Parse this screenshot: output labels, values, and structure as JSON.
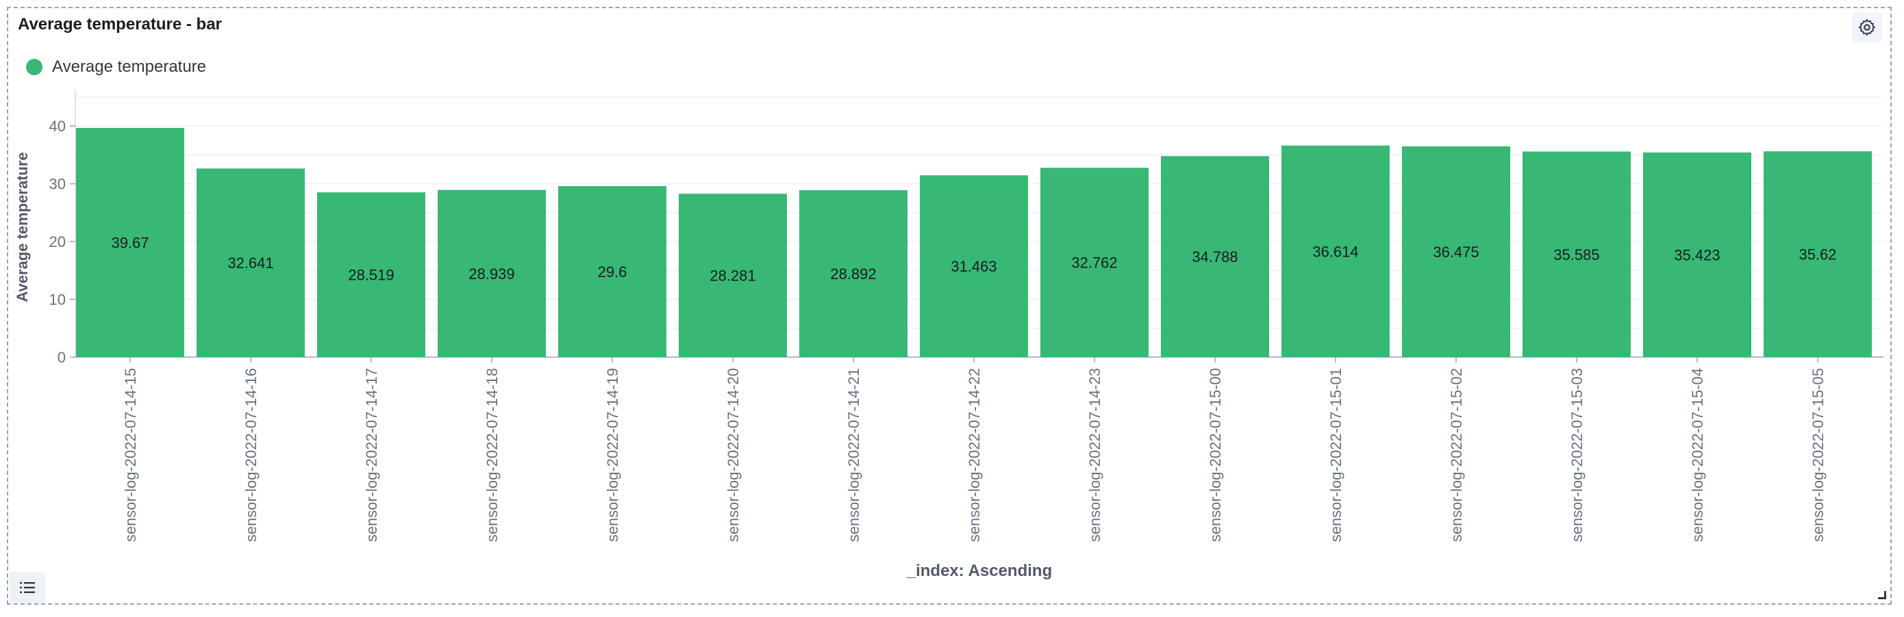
{
  "panel": {
    "title": "Average temperature - bar"
  },
  "legend": {
    "label": "Average temperature",
    "color": "#37b874"
  },
  "icons": {
    "settings": "gear-icon",
    "legend_toggle": "list-icon",
    "resize": "resize-handle-icon"
  },
  "chart_data": {
    "type": "bar",
    "categories": [
      "sensor-log-2022-07-14-15",
      "sensor-log-2022-07-14-16",
      "sensor-log-2022-07-14-17",
      "sensor-log-2022-07-14-18",
      "sensor-log-2022-07-14-19",
      "sensor-log-2022-07-14-20",
      "sensor-log-2022-07-14-21",
      "sensor-log-2022-07-14-22",
      "sensor-log-2022-07-14-23",
      "sensor-log-2022-07-15-00",
      "sensor-log-2022-07-15-01",
      "sensor-log-2022-07-15-02",
      "sensor-log-2022-07-15-03",
      "sensor-log-2022-07-15-04",
      "sensor-log-2022-07-15-05"
    ],
    "series": [
      {
        "name": "Average temperature",
        "color": "#37b874",
        "values": [
          39.67,
          32.641,
          28.519,
          28.939,
          29.6,
          28.281,
          28.892,
          31.463,
          32.762,
          34.788,
          36.614,
          36.475,
          35.585,
          35.423,
          35.62
        ],
        "labels": [
          "39.67",
          "32.641",
          "28.519",
          "28.939",
          "29.6",
          "28.281",
          "28.892",
          "31.463",
          "32.762",
          "34.788",
          "36.614",
          "36.475",
          "35.585",
          "35.423",
          "35.62"
        ]
      }
    ],
    "xlabel": "_index: Ascending",
    "ylabel": "Average temperature",
    "yticks": [
      0,
      10,
      20,
      30,
      40
    ],
    "ylim": [
      0,
      45
    ],
    "grid": true,
    "legend_position": "top-left"
  }
}
